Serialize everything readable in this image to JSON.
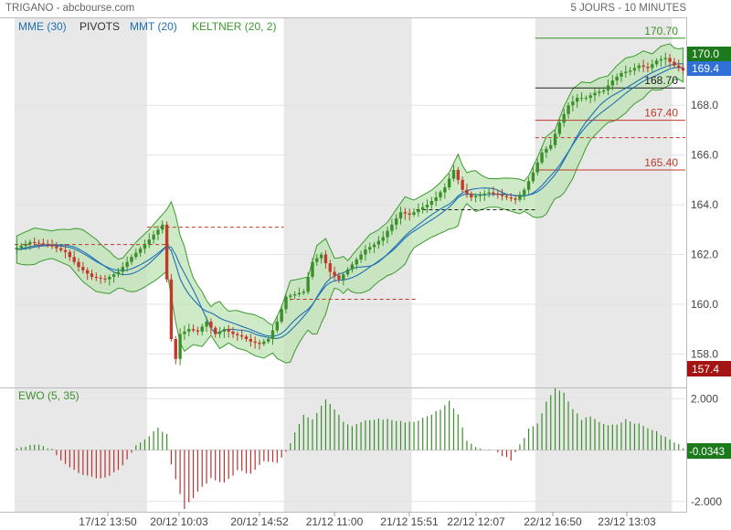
{
  "header": {
    "title": "TRIGANO - abcbourse.com",
    "period": "5 JOURS - 10 MINUTES"
  },
  "legend": [
    {
      "label": "MME (30)",
      "color": "#1f6fb5"
    },
    {
      "label": "PIVOTS",
      "color": "#333333"
    },
    {
      "label": "MMT (20)",
      "color": "#1f6fb5"
    },
    {
      "label": "KELTNER (20, 2)",
      "color": "#3b9a2f"
    }
  ],
  "colors": {
    "up": "#3a8f2a",
    "down": "#c0392b",
    "keltner_fill": "#bfe3b4",
    "keltner_line": "#3b9a2f",
    "ma": "#1f6fb5",
    "session_shade": "#e8e8e8"
  },
  "chart_data": [
    {
      "type": "line",
      "name": "price",
      "x_labels": [
        "17/12 13:50",
        "20/12 10:03",
        "20/12 14:52",
        "21/12 11:00",
        "21/12 15:51",
        "22/12 12:07",
        "22/12 16:50",
        "23/12 13:03"
      ],
      "y_ticks": [
        "168.0",
        "166.0",
        "164.0",
        "162.0",
        "160.0",
        "158.0"
      ],
      "ylim": [
        156.8,
        171.5
      ],
      "grid": true,
      "price_path": [
        [
          0,
          162.2
        ],
        [
          4,
          162.5
        ],
        [
          8,
          162.4
        ],
        [
          12,
          162.1
        ],
        [
          15,
          161.5
        ],
        [
          18,
          161.1
        ],
        [
          21,
          161.0
        ],
        [
          24,
          161.3
        ],
        [
          27,
          161.9
        ],
        [
          30,
          162.4
        ],
        [
          32,
          162.8
        ],
        [
          34,
          163.2
        ],
        [
          35,
          161.0
        ],
        [
          36,
          158.6
        ],
        [
          37,
          157.8
        ],
        [
          38,
          158.8
        ],
        [
          40,
          159.0
        ],
        [
          42,
          158.9
        ],
        [
          44,
          159.3
        ],
        [
          46,
          158.8
        ],
        [
          48,
          159.0
        ],
        [
          50,
          158.8
        ],
        [
          52,
          158.7
        ],
        [
          54,
          158.5
        ],
        [
          56,
          158.4
        ],
        [
          58,
          158.6
        ],
        [
          60,
          159.3
        ],
        [
          62,
          160.3
        ],
        [
          64,
          160.4
        ],
        [
          66,
          160.5
        ],
        [
          68,
          161.7
        ],
        [
          70,
          162.0
        ],
        [
          72,
          161.3
        ],
        [
          74,
          161.0
        ],
        [
          76,
          161.4
        ],
        [
          78,
          161.8
        ],
        [
          80,
          162.2
        ],
        [
          82,
          162.4
        ],
        [
          84,
          162.7
        ],
        [
          86,
          163.2
        ],
        [
          88,
          163.7
        ],
        [
          90,
          163.6
        ],
        [
          92,
          163.8
        ],
        [
          94,
          164.0
        ],
        [
          96,
          164.3
        ],
        [
          98,
          164.7
        ],
        [
          100,
          165.4
        ],
        [
          101,
          165.0
        ],
        [
          102,
          164.6
        ],
        [
          104,
          164.3
        ],
        [
          106,
          164.4
        ],
        [
          108,
          164.5
        ],
        [
          110,
          164.4
        ],
        [
          112,
          164.3
        ],
        [
          114,
          164.2
        ],
        [
          116,
          164.6
        ],
        [
          118,
          165.3
        ],
        [
          120,
          166.1
        ],
        [
          122,
          166.4
        ],
        [
          124,
          167.3
        ],
        [
          126,
          168.0
        ],
        [
          128,
          168.3
        ],
        [
          130,
          168.3
        ],
        [
          132,
          168.5
        ],
        [
          134,
          168.6
        ],
        [
          136,
          169.0
        ],
        [
          138,
          169.3
        ],
        [
          140,
          169.4
        ],
        [
          142,
          169.6
        ],
        [
          144,
          169.5
        ],
        [
          146,
          169.8
        ],
        [
          148,
          169.9
        ],
        [
          150,
          169.6
        ],
        [
          152,
          169.4
        ]
      ],
      "price_labels": {
        "high": "170.0",
        "last": "169.4",
        "low": "157.4"
      },
      "pivots": [
        {
          "label": "170.70",
          "value": 170.7,
          "color": "#3a8f2a",
          "style": "solid",
          "from": 118,
          "to": 152
        },
        {
          "label": "168.70",
          "value": 168.7,
          "color": "#222222",
          "style": "solid",
          "from": 118,
          "to": 152
        },
        {
          "label": "167.40",
          "value": 167.4,
          "color": "#c0392b",
          "style": "solid",
          "from": 118,
          "to": 152
        },
        {
          "label": "",
          "value": 166.7,
          "color": "#c0392b",
          "style": "dashed",
          "from": 118,
          "to": 152
        },
        {
          "label": "165.40",
          "value": 165.4,
          "color": "#c0392b",
          "style": "solid",
          "from": 118,
          "to": 152
        },
        {
          "label": "",
          "value": 162.4,
          "color": "#c0392b",
          "style": "dashed",
          "from": 0,
          "to": 35
        },
        {
          "label": "",
          "value": 163.1,
          "color": "#c0392b",
          "style": "dashed",
          "from": 30,
          "to": 61
        },
        {
          "label": "",
          "value": 160.2,
          "color": "#c0392b",
          "style": "dashed",
          "from": 61,
          "to": 91
        },
        {
          "label": "",
          "value": 163.8,
          "color": "#222222",
          "style": "dashed",
          "from": 91,
          "to": 118
        }
      ],
      "sessions": [
        [
          0,
          29
        ],
        [
          61,
          89
        ],
        [
          118,
          148
        ]
      ]
    },
    {
      "type": "bar",
      "name": "EWO (5, 35)",
      "y_ticks": [
        "2.000",
        "-2.000"
      ],
      "ylim": [
        -2.4,
        2.4
      ],
      "last_value": "-0.0343",
      "ewo_path": [
        [
          0,
          0.1
        ],
        [
          5,
          0.2
        ],
        [
          8,
          0.05
        ],
        [
          10,
          -0.4
        ],
        [
          14,
          -0.9
        ],
        [
          18,
          -1.1
        ],
        [
          21,
          -1.0
        ],
        [
          24,
          -0.6
        ],
        [
          27,
          0.2
        ],
        [
          30,
          0.5
        ],
        [
          32,
          0.9
        ],
        [
          34,
          0.6
        ],
        [
          35,
          -0.6
        ],
        [
          38,
          -2.3
        ],
        [
          41,
          -1.6
        ],
        [
          44,
          -1.1
        ],
        [
          47,
          -1.3
        ],
        [
          50,
          -0.8
        ],
        [
          53,
          -0.9
        ],
        [
          56,
          -0.4
        ],
        [
          59,
          -0.5
        ],
        [
          61,
          -0.1
        ],
        [
          63,
          0.7
        ],
        [
          65,
          1.4
        ],
        [
          67,
          1.2
        ],
        [
          70,
          2.0
        ],
        [
          72,
          1.6
        ],
        [
          74,
          1.1
        ],
        [
          76,
          0.9
        ],
        [
          78,
          1.1
        ],
        [
          81,
          1.2
        ],
        [
          84,
          1.2
        ],
        [
          87,
          1.1
        ],
        [
          90,
          1.1
        ],
        [
          93,
          1.3
        ],
        [
          96,
          1.6
        ],
        [
          98,
          1.9
        ],
        [
          100,
          1.4
        ],
        [
          102,
          0.4
        ],
        [
          104,
          0.1
        ],
        [
          108,
          0.0
        ],
        [
          110,
          -0.2
        ],
        [
          112,
          -0.4
        ],
        [
          114,
          0.2
        ],
        [
          116,
          0.8
        ],
        [
          118,
          1.0
        ],
        [
          120,
          1.9
        ],
        [
          122,
          2.4
        ],
        [
          124,
          2.2
        ],
        [
          126,
          1.6
        ],
        [
          128,
          1.2
        ],
        [
          130,
          1.3
        ],
        [
          133,
          1.0
        ],
        [
          136,
          1.0
        ],
        [
          138,
          1.2
        ],
        [
          141,
          1.0
        ],
        [
          144,
          0.8
        ],
        [
          147,
          0.5
        ],
        [
          150,
          0.2
        ],
        [
          152,
          0.0
        ]
      ]
    }
  ]
}
